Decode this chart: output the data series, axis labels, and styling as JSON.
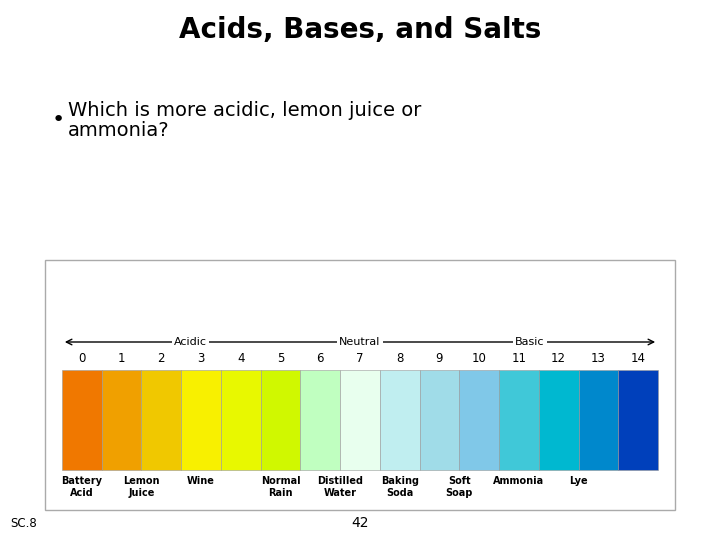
{
  "title": "Acids, Bases, and Salts",
  "bullet_line1": "Which is more acidic, lemon juice or",
  "bullet_line2": "ammonia?",
  "page_number": "42",
  "sc_label": "SC.8",
  "background_color": "#ffffff",
  "title_fontsize": 20,
  "title_fontweight": "bold",
  "bullet_fontsize": 14,
  "ph_colors": [
    "#F07800",
    "#F0A000",
    "#F0C800",
    "#F8F000",
    "#E8F800",
    "#D0F800",
    "#C0FFC0",
    "#E8FFEE",
    "#C0EEF0",
    "#A0DCE8",
    "#80C8E8",
    "#40C8D8",
    "#00B8D0",
    "#0088CC",
    "#0040BB"
  ],
  "ph_labels": [
    "0",
    "1",
    "2",
    "3",
    "4",
    "5",
    "6",
    "7",
    "8",
    "9",
    "10",
    "11",
    "12",
    "13",
    "14"
  ],
  "substance_labels": [
    {
      "label": "Battery\nAcid",
      "ph": 0.5
    },
    {
      "label": "Lemon\nJuice",
      "ph": 2
    },
    {
      "label": "Wine",
      "ph": 3.5
    },
    {
      "label": "Normal\nRain",
      "ph": 5.5
    },
    {
      "label": "Distilled\nWater",
      "ph": 7
    },
    {
      "label": "Baking\nSoda",
      "ph": 8.5
    },
    {
      "label": "Soft\nSoap",
      "ph": 10
    },
    {
      "label": "Ammonia",
      "ph": 11.5
    },
    {
      "label": "Lye",
      "ph": 13
    }
  ],
  "arrow_label_acidic": "Acidic",
  "arrow_label_neutral": "Neutral",
  "arrow_label_basic": "Basic",
  "box_border_color": "#aaaaaa",
  "label_fontsize": 7,
  "ph_fontsize": 8.5,
  "arrow_fontsize": 8
}
